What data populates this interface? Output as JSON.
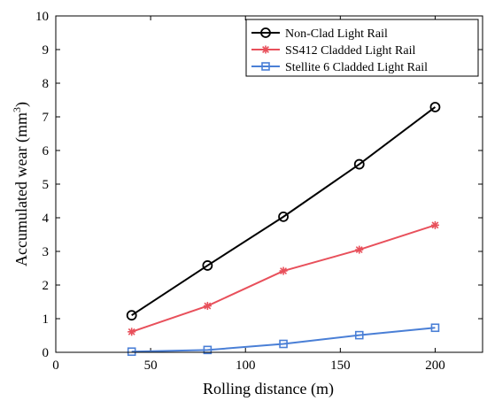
{
  "chart_data": {
    "type": "line",
    "xlabel": "Rolling distance (m)",
    "ylabel": "Accumulated wear (mm",
    "ylabel_sup": "3",
    "ylabel_end": ")",
    "xlim": [
      0,
      225
    ],
    "ylim": [
      0,
      10
    ],
    "xticks": [
      0,
      50,
      100,
      150,
      200
    ],
    "yticks": [
      0,
      1,
      2,
      3,
      4,
      5,
      6,
      7,
      8,
      9,
      10
    ],
    "xtick_labels": [
      "0",
      "50",
      "100",
      "150",
      "200"
    ],
    "ytick_labels": [
      "0",
      "1",
      "2",
      "3",
      "4",
      "5",
      "6",
      "7",
      "8",
      "9",
      "10"
    ],
    "grid": false,
    "legend_position": "top-right",
    "x": [
      40,
      80,
      120,
      160,
      200
    ],
    "series": [
      {
        "name": "Non-Clad Light Rail",
        "color": "#000000",
        "marker": "circle",
        "values": [
          1.1,
          2.58,
          4.03,
          5.59,
          7.29
        ]
      },
      {
        "name": "SS412 Cladded Light Rail",
        "color": "#e8505b",
        "marker": "asterisk",
        "values": [
          0.61,
          1.38,
          2.42,
          3.05,
          3.78
        ]
      },
      {
        "name": "Stellite 6 Cladded Light Rail",
        "color": "#4a7fd6",
        "marker": "square",
        "values": [
          0.02,
          0.07,
          0.25,
          0.51,
          0.73
        ]
      }
    ]
  }
}
